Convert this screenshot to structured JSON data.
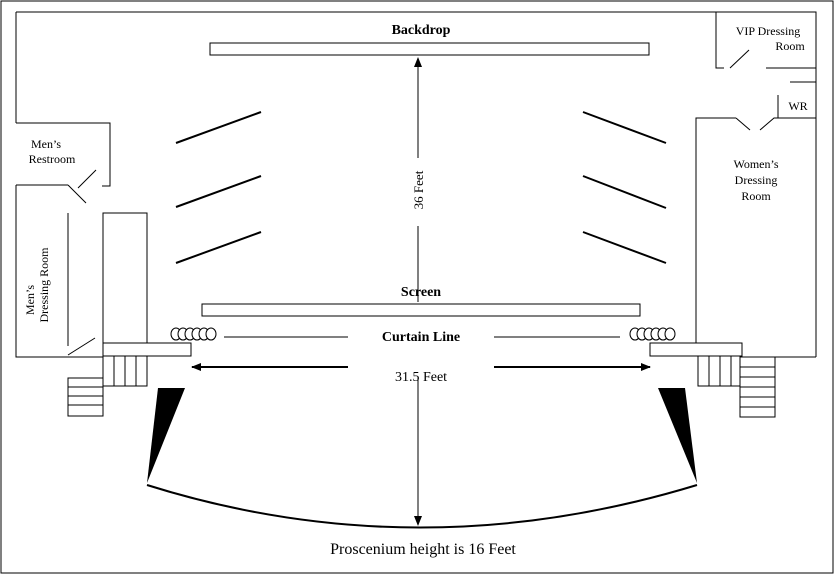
{
  "labels": {
    "backdrop": "Backdrop",
    "screen": "Screen",
    "curtain_line": "Curtain Line",
    "depth": "36 Feet",
    "width": "31.5 Feet",
    "proscenium_note": "Proscenium height is 16 Feet"
  },
  "rooms": {
    "vip_dressing": [
      "VIP Dressing",
      "Room"
    ],
    "wr": "WR",
    "womens_dressing": [
      "Women’s",
      "Dressing",
      "Room"
    ],
    "mens_restroom": [
      "Men’s",
      "Restroom"
    ],
    "mens_dressing": [
      "Men’s",
      "Dressing Room"
    ]
  },
  "colors": {
    "line": "#000000",
    "background": "#ffffff"
  }
}
